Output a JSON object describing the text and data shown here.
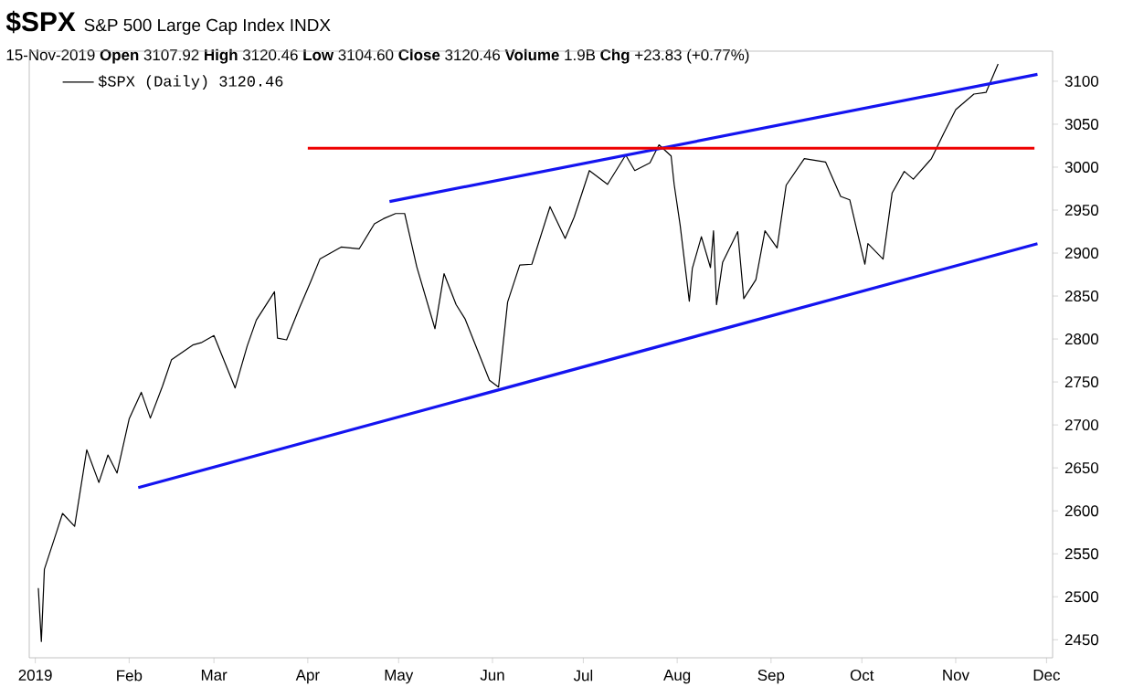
{
  "chart_data": {
    "type": "line",
    "title": "$SPX",
    "subtitle": "S&P 500 Large Cap Index INDX",
    "annotations": [
      "15-Nov-2019  **Open** 3107.92  **High** 3120.46  **Low** 3104.60  **Close** 3120.46  **Volume** 1.9B  **Chg** +23.83 (+0.77%)"
    ],
    "legend": "top left",
    "marker": "none",
    "line_style": "solid",
    "xlim": [
      "2018-12-30",
      "2019-12-03"
    ],
    "xticks": [
      {
        "value": "2019-01-01",
        "label": "2019"
      },
      {
        "value": "2019-02-01",
        "label": "Feb"
      },
      {
        "value": "2019-03-01",
        "label": "Mar"
      },
      {
        "value": "2019-04-01",
        "label": "Apr"
      },
      {
        "value": "2019-05-01",
        "label": "May"
      },
      {
        "value": "2019-06-01",
        "label": "Jun"
      },
      {
        "value": "2019-07-01",
        "label": "Jul"
      },
      {
        "value": "2019-08-01",
        "label": "Aug"
      },
      {
        "value": "2019-09-01",
        "label": "Sep"
      },
      {
        "value": "2019-10-01",
        "label": "Oct"
      },
      {
        "value": "2019-11-01",
        "label": "Nov"
      },
      {
        "value": "2019-12-01",
        "label": "Dec"
      }
    ],
    "ylim": [
      2429,
      3135
    ],
    "yticks": [
      2450,
      2500,
      2550,
      2600,
      2650,
      2700,
      2750,
      2800,
      2850,
      2900,
      2950,
      3000,
      3050,
      3100
    ],
    "series": [
      {
        "name": "$SPX (Daily) 3120.46",
        "color": "#000000",
        "x": [
          "2019-01-02",
          "2019-01-03",
          "2019-01-04",
          "2019-01-08",
          "2019-01-10",
          "2019-01-14",
          "2019-01-18",
          "2019-01-22",
          "2019-01-25",
          "2019-01-28",
          "2019-02-01",
          "2019-02-05",
          "2019-02-08",
          "2019-02-12",
          "2019-02-15",
          "2019-02-22",
          "2019-02-25",
          "2019-03-01",
          "2019-03-08",
          "2019-03-12",
          "2019-03-15",
          "2019-03-21",
          "2019-03-22",
          "2019-03-25",
          "2019-03-29",
          "2019-04-02",
          "2019-04-05",
          "2019-04-12",
          "2019-04-18",
          "2019-04-23",
          "2019-04-26",
          "2019-04-30",
          "2019-05-03",
          "2019-05-07",
          "2019-05-13",
          "2019-05-16",
          "2019-05-20",
          "2019-05-23",
          "2019-05-31",
          "2019-06-03",
          "2019-06-06",
          "2019-06-10",
          "2019-06-14",
          "2019-06-20",
          "2019-06-25",
          "2019-06-28",
          "2019-07-03",
          "2019-07-09",
          "2019-07-15",
          "2019-07-18",
          "2019-07-23",
          "2019-07-26",
          "2019-07-30",
          "2019-07-31",
          "2019-08-02",
          "2019-08-05",
          "2019-08-06",
          "2019-08-09",
          "2019-08-12",
          "2019-08-13",
          "2019-08-14",
          "2019-08-16",
          "2019-08-21",
          "2019-08-23",
          "2019-08-27",
          "2019-08-30",
          "2019-09-03",
          "2019-09-06",
          "2019-09-12",
          "2019-09-19",
          "2019-09-24",
          "2019-09-27",
          "2019-10-02",
          "2019-10-03",
          "2019-10-08",
          "2019-10-11",
          "2019-10-15",
          "2019-10-18",
          "2019-10-24",
          "2019-10-28",
          "2019-11-01",
          "2019-11-07",
          "2019-11-11",
          "2019-11-15"
        ],
        "values": [
          2510,
          2448,
          2532,
          2575,
          2597,
          2582,
          2671,
          2633,
          2665,
          2644,
          2707,
          2738,
          2708,
          2745,
          2776,
          2793,
          2796,
          2804,
          2743,
          2792,
          2822,
          2855,
          2801,
          2799,
          2834,
          2867,
          2893,
          2907,
          2905,
          2934,
          2940,
          2946,
          2946,
          2884,
          2812,
          2876,
          2840,
          2823,
          2752,
          2744,
          2843,
          2886,
          2887,
          2954,
          2917,
          2942,
          2996,
          2980,
          3014,
          2996,
          3005,
          3026,
          3013,
          2980,
          2932,
          2844,
          2882,
          2919,
          2883,
          2926,
          2840,
          2889,
          2925,
          2847,
          2869,
          2926,
          2906,
          2979,
          3010,
          3006,
          2966,
          2962,
          2887,
          2911,
          2893,
          2970,
          2995,
          2986,
          3010,
          3039,
          3067,
          3085,
          3087,
          3120
        ]
      },
      {
        "color": "#1414f0",
        "x": [
          "2019-04-28",
          "2019-11-28"
        ],
        "values": [
          2960,
          3108
        ]
      },
      {
        "color": "#1414f0",
        "x": [
          "2019-02-04",
          "2019-11-28"
        ],
        "values": [
          2627,
          2911
        ]
      },
      {
        "color": "#ee0000",
        "x": [
          "2019-04-01",
          "2019-11-27"
        ],
        "values": [
          3022,
          3022
        ]
      }
    ]
  }
}
